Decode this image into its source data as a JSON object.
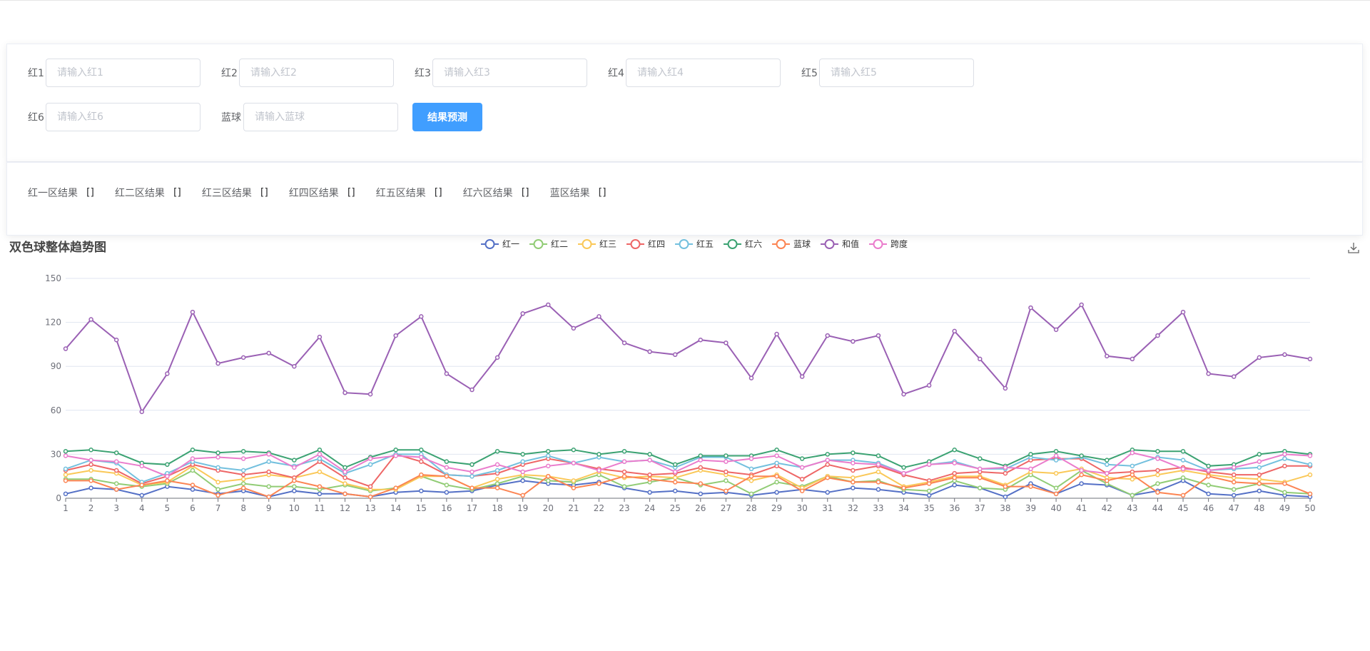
{
  "form": {
    "fields": [
      {
        "label": "红1",
        "placeholder": "请输入红1"
      },
      {
        "label": "红2",
        "placeholder": "请输入红2"
      },
      {
        "label": "红3",
        "placeholder": "请输入红3"
      },
      {
        "label": "红4",
        "placeholder": "请输入红4"
      },
      {
        "label": "红5",
        "placeholder": "请输入红5"
      },
      {
        "label": "红6",
        "placeholder": "请输入红6"
      },
      {
        "label": "蓝球",
        "placeholder": "请输入蓝球"
      }
    ],
    "submit_label": "结果预测"
  },
  "results": [
    {
      "label": "红一区结果",
      "value": "[]"
    },
    {
      "label": "红二区结果",
      "value": "[]"
    },
    {
      "label": "红三区结果",
      "value": "[]"
    },
    {
      "label": "红四区结果",
      "value": "[]"
    },
    {
      "label": "红五区结果",
      "value": "[]"
    },
    {
      "label": "红六区结果",
      "value": "[]"
    },
    {
      "label": "蓝区结果",
      "value": "[]"
    }
  ],
  "chart_data": {
    "type": "line",
    "title": "双色球整体趋势图",
    "xlabel": "",
    "ylabel": "",
    "ylim": [
      0,
      150
    ],
    "yticks": [
      0,
      30,
      60,
      90,
      120,
      150
    ],
    "grid": true,
    "legend_position": "top-center",
    "x": [
      1,
      2,
      3,
      4,
      5,
      6,
      7,
      8,
      9,
      10,
      11,
      12,
      13,
      14,
      15,
      16,
      17,
      18,
      19,
      20,
      21,
      22,
      23,
      24,
      25,
      26,
      27,
      28,
      29,
      30,
      31,
      32,
      33,
      34,
      35,
      36,
      37,
      38,
      39,
      40,
      41,
      42,
      43,
      44,
      45,
      46,
      47,
      48,
      49,
      50
    ],
    "series": [
      {
        "name": "红一",
        "color": "#5470c6",
        "values": [
          3,
          7,
          6,
          2,
          8,
          6,
          3,
          5,
          1,
          5,
          3,
          3,
          1,
          4,
          5,
          4,
          5,
          9,
          12,
          10,
          9,
          11,
          7,
          4,
          5,
          3,
          4,
          2,
          4,
          6,
          4,
          7,
          6,
          4,
          2,
          9,
          7,
          1,
          10,
          3,
          10,
          9,
          2,
          5,
          12,
          3,
          2,
          5,
          2,
          1
        ]
      },
      {
        "name": "红二",
        "color": "#91cc75",
        "values": [
          13,
          13,
          10,
          8,
          10,
          19,
          6,
          10,
          8,
          8,
          6,
          9,
          5,
          7,
          15,
          9,
          6,
          10,
          15,
          12,
          11,
          16,
          8,
          11,
          14,
          9,
          12,
          3,
          11,
          8,
          15,
          11,
          12,
          6,
          5,
          12,
          7,
          6,
          16,
          7,
          19,
          10,
          2,
          10,
          14,
          9,
          6,
          10,
          4,
          3
        ]
      },
      {
        "name": "红三",
        "color": "#fac858",
        "values": [
          16,
          19,
          17,
          9,
          11,
          22,
          11,
          13,
          16,
          14,
          18,
          10,
          6,
          6,
          15,
          15,
          7,
          13,
          16,
          15,
          12,
          18,
          14,
          15,
          14,
          19,
          16,
          12,
          16,
          7,
          15,
          14,
          18,
          8,
          11,
          15,
          15,
          9,
          18,
          17,
          20,
          14,
          13,
          16,
          19,
          16,
          14,
          13,
          11,
          16
        ]
      },
      {
        "name": "红四",
        "color": "#ee6666",
        "values": [
          19,
          23,
          19,
          10,
          15,
          23,
          19,
          16,
          18,
          14,
          25,
          14,
          8,
          30,
          25,
          16,
          15,
          17,
          23,
          27,
          24,
          20,
          18,
          16,
          17,
          21,
          18,
          16,
          22,
          13,
          23,
          19,
          22,
          16,
          12,
          17,
          18,
          17,
          26,
          27,
          27,
          17,
          18,
          19,
          21,
          18,
          16,
          16,
          22,
          22
        ]
      },
      {
        "name": "红五",
        "color": "#73c0de",
        "values": [
          20,
          26,
          24,
          11,
          17,
          25,
          21,
          19,
          25,
          22,
          27,
          17,
          23,
          30,
          30,
          16,
          15,
          19,
          25,
          29,
          24,
          28,
          25,
          26,
          21,
          28,
          28,
          20,
          24,
          21,
          26,
          26,
          24,
          17,
          23,
          25,
          20,
          20,
          28,
          26,
          28,
          23,
          22,
          28,
          26,
          19,
          20,
          21,
          27,
          23
        ]
      },
      {
        "name": "红六",
        "color": "#3ba272",
        "values": [
          32,
          33,
          31,
          24,
          23,
          33,
          31,
          32,
          31,
          26,
          33,
          21,
          28,
          33,
          33,
          25,
          23,
          32,
          30,
          32,
          33,
          30,
          32,
          30,
          23,
          29,
          29,
          29,
          33,
          27,
          30,
          31,
          29,
          21,
          25,
          33,
          27,
          22,
          30,
          32,
          29,
          26,
          33,
          32,
          32,
          22,
          23,
          30,
          32,
          30
        ]
      },
      {
        "name": "蓝球",
        "color": "#fc8452",
        "values": [
          12,
          12,
          6,
          9,
          12,
          9,
          2,
          7,
          1,
          12,
          8,
          3,
          1,
          7,
          16,
          15,
          7,
          7,
          2,
          15,
          7,
          10,
          15,
          13,
          11,
          10,
          5,
          15,
          15,
          5,
          14,
          11,
          11,
          7,
          10,
          14,
          14,
          8,
          8,
          3,
          16,
          12,
          16,
          4,
          2,
          15,
          11,
          10,
          10,
          3
        ]
      },
      {
        "name": "和值",
        "color": "#9a60b4",
        "values": [
          102,
          122,
          108,
          59,
          85,
          127,
          92,
          96,
          99,
          90,
          110,
          72,
          71,
          111,
          124,
          85,
          74,
          96,
          126,
          132,
          116,
          124,
          106,
          100,
          98,
          108,
          106,
          82,
          112,
          83,
          111,
          107,
          111,
          71,
          77,
          114,
          95,
          75,
          130,
          115,
          132,
          97,
          95,
          111,
          127,
          85,
          83,
          96,
          98,
          95
        ]
      },
      {
        "name": "跨度",
        "color": "#ea7ccc",
        "values": [
          29,
          26,
          25,
          22,
          15,
          27,
          28,
          27,
          30,
          21,
          30,
          18,
          27,
          29,
          28,
          21,
          18,
          23,
          18,
          22,
          24,
          19,
          25,
          26,
          18,
          26,
          25,
          27,
          29,
          21,
          26,
          24,
          23,
          17,
          23,
          24,
          20,
          21,
          20,
          29,
          19,
          17,
          31,
          27,
          20,
          19,
          21,
          25,
          30,
          29
        ]
      }
    ]
  },
  "icons": {
    "download": "download-icon",
    "legend_marker": "hollow-circle-line"
  }
}
